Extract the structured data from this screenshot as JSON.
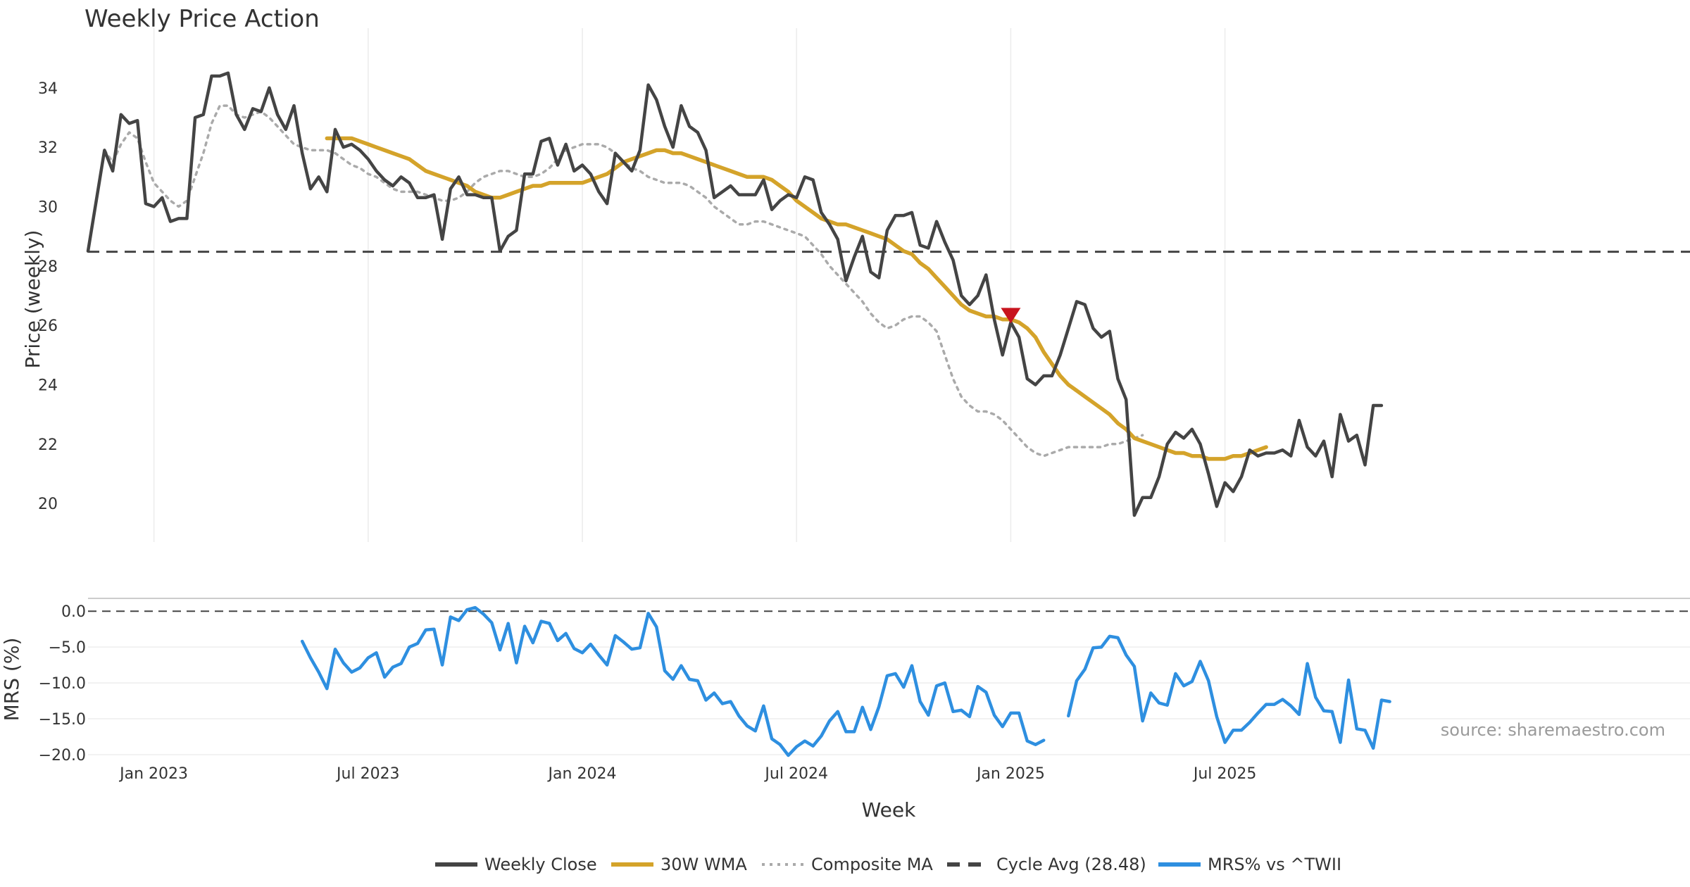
{
  "chart_data": {
    "type": "line",
    "title": "Weekly Price Action",
    "xlabel": "Week",
    "x_tick_labels": [
      "Jan 2023",
      "Jul 2023",
      "Jan 2024",
      "Jul 2024",
      "Jan 2025",
      "Jul 2025"
    ],
    "source": "source: sharemaestro.com",
    "price_panel": {
      "ylabel": "Price (weekly)",
      "ylim": [
        18.7,
        35.3
      ],
      "yticks": [
        "20",
        "22",
        "24",
        "26",
        "28",
        "30",
        "32",
        "34"
      ],
      "cycle_avg": 28.48,
      "signal_marker": {
        "week": 112,
        "value": 26.35,
        "kind": "sell"
      },
      "series": [
        {
          "name": "Weekly Close",
          "color": "#444444",
          "start": 0,
          "values": [
            28.5,
            30.2,
            31.9,
            31.2,
            33.1,
            32.8,
            32.9,
            30.1,
            30.0,
            30.3,
            29.5,
            29.6,
            29.6,
            33.0,
            33.1,
            34.4,
            34.4,
            34.5,
            33.1,
            32.6,
            33.3,
            33.2,
            34.0,
            33.1,
            32.6,
            33.4,
            31.8,
            30.6,
            31.0,
            30.5,
            32.6,
            32.0,
            32.1,
            31.9,
            31.6,
            31.2,
            30.9,
            30.7,
            31.0,
            30.8,
            30.3,
            30.3,
            30.4,
            28.9,
            30.6,
            31.0,
            30.4,
            30.4,
            30.3,
            30.3,
            28.5,
            29.0,
            29.2,
            31.1,
            31.1,
            32.2,
            32.3,
            31.4,
            32.1,
            31.2,
            31.4,
            31.1,
            30.5,
            30.1,
            31.8,
            31.5,
            31.2,
            31.9,
            34.1,
            33.6,
            32.7,
            32.0,
            33.4,
            32.7,
            32.5,
            31.9,
            30.3,
            30.5,
            30.7,
            30.4,
            30.4,
            30.4,
            30.9,
            29.9,
            30.2,
            30.4,
            30.3,
            31.0,
            30.9,
            29.8,
            29.4,
            28.9,
            27.5,
            28.3,
            29.0,
            27.8,
            27.6,
            29.2,
            29.7,
            29.7,
            29.8,
            28.7,
            28.6,
            29.5,
            28.8,
            28.2,
            27.0,
            26.7,
            27.0,
            27.7,
            26.2,
            25.0,
            26.1,
            25.6,
            24.2,
            24.0,
            24.3,
            24.3,
            25.0,
            25.9,
            26.8,
            26.7,
            25.9,
            25.6,
            25.8,
            24.2,
            23.5,
            19.6,
            20.2,
            20.2,
            20.9,
            22.0,
            22.4,
            22.2,
            22.5,
            22.0,
            21.0,
            19.9,
            20.7,
            20.4,
            20.9,
            21.8,
            21.6,
            21.7,
            21.7,
            21.8,
            21.6,
            22.8,
            21.9,
            21.6,
            22.1,
            20.9,
            23.0,
            22.1,
            22.3,
            21.3,
            23.3,
            23.3
          ]
        },
        {
          "name": "30W WMA",
          "color": "#D4A32A",
          "start": 29,
          "values": [
            32.3,
            32.3,
            32.3,
            32.3,
            32.2,
            32.1,
            32.0,
            31.9,
            31.8,
            31.7,
            31.6,
            31.4,
            31.2,
            31.1,
            31.0,
            30.9,
            30.8,
            30.7,
            30.5,
            30.4,
            30.3,
            30.3,
            30.4,
            30.5,
            30.6,
            30.7,
            30.7,
            30.8,
            30.8,
            30.8,
            30.8,
            30.8,
            30.9,
            31.0,
            31.1,
            31.3,
            31.5,
            31.6,
            31.7,
            31.8,
            31.9,
            31.9,
            31.8,
            31.8,
            31.7,
            31.6,
            31.5,
            31.4,
            31.3,
            31.2,
            31.1,
            31.0,
            31.0,
            31.0,
            30.9,
            30.7,
            30.5,
            30.2,
            30.0,
            29.8,
            29.6,
            29.5,
            29.4,
            29.4,
            29.3,
            29.2,
            29.1,
            29.0,
            28.9,
            28.7,
            28.5,
            28.4,
            28.1,
            27.9,
            27.6,
            27.3,
            27.0,
            26.7,
            26.5,
            26.4,
            26.3,
            26.3,
            26.2,
            26.2,
            26.1,
            25.9,
            25.6,
            25.1,
            24.7,
            24.3,
            24.0,
            23.8,
            23.6,
            23.4,
            23.2,
            23.0,
            22.7,
            22.5,
            22.2,
            22.1,
            22.0,
            21.9,
            21.8,
            21.7,
            21.7,
            21.6,
            21.6,
            21.5,
            21.5,
            21.5,
            21.6,
            21.6,
            21.7,
            21.8,
            21.9
          ]
        },
        {
          "name": "Composite MA",
          "color": "#AAAAAA",
          "start": 2,
          "values": [
            31.9,
            31.5,
            32.1,
            32.5,
            32.3,
            31.5,
            30.8,
            30.5,
            30.2,
            30.0,
            30.2,
            31.0,
            31.8,
            32.8,
            33.4,
            33.4,
            33.1,
            33.0,
            33.1,
            33.2,
            33.0,
            32.7,
            32.4,
            32.1,
            32.0,
            31.9,
            31.9,
            31.9,
            31.8,
            31.6,
            31.4,
            31.3,
            31.1,
            31.0,
            30.8,
            30.6,
            30.5,
            30.5,
            30.5,
            30.4,
            30.3,
            30.2,
            30.2,
            30.3,
            30.5,
            30.8,
            31.0,
            31.1,
            31.2,
            31.2,
            31.1,
            31.0,
            31.0,
            31.1,
            31.3,
            31.6,
            31.9,
            32.0,
            32.1,
            32.1,
            32.1,
            32.0,
            31.8,
            31.5,
            31.3,
            31.2,
            31.0,
            30.9,
            30.8,
            30.8,
            30.8,
            30.7,
            30.5,
            30.3,
            30.0,
            29.8,
            29.6,
            29.4,
            29.4,
            29.5,
            29.5,
            29.4,
            29.3,
            29.2,
            29.1,
            29.0,
            28.7,
            28.4,
            28.0,
            27.7,
            27.4,
            27.1,
            26.8,
            26.4,
            26.1,
            25.9,
            26.0,
            26.2,
            26.3,
            26.3,
            26.1,
            25.8,
            25.0,
            24.2,
            23.6,
            23.3,
            23.1,
            23.1,
            23.0,
            22.8,
            22.5,
            22.2,
            21.9,
            21.7,
            21.6,
            21.7,
            21.8,
            21.9,
            21.9,
            21.9,
            21.9,
            21.9,
            22.0,
            22.0,
            22.1,
            22.2,
            22.3
          ]
        }
      ]
    },
    "mrs_panel": {
      "ylabel": "MRS (%)",
      "ylim": [
        -20.3,
        1.3
      ],
      "yticks": [
        "0.0",
        "−5.0",
        "−10.0",
        "−15.0",
        "−20.0"
      ],
      "zero_line": 0,
      "series": [
        {
          "name": "MRS% vs ^TWII",
          "color": "#2E8FE0",
          "start": 26,
          "segments": [
            [
              -4.2,
              -6.5,
              -8.5,
              -10.8,
              -5.3,
              -7.2,
              -8.5,
              -7.9,
              -6.5,
              -5.8,
              -9.2,
              -7.8,
              -7.3,
              -5.0,
              -4.5,
              -2.6,
              -2.5,
              -7.5,
              -0.8,
              -1.3,
              0.2,
              0.5,
              -0.4,
              -1.6,
              -5.4,
              -1.7,
              -7.2,
              -2.1,
              -4.4,
              -1.4,
              -1.7,
              -4.1,
              -3.1,
              -5.2,
              -5.8,
              -4.6,
              -6.1,
              -7.5,
              -3.4,
              -4.3,
              -5.3,
              -5.1,
              -0.3,
              -2.2,
              -8.3,
              -9.5,
              -7.6,
              -9.5,
              -9.7,
              -12.4,
              -11.4,
              -12.9,
              -12.6,
              -14.6,
              -16.0,
              -16.7,
              -13.2,
              -17.8,
              -18.6,
              -20.1,
              -18.9,
              -18.1,
              -18.8,
              -17.4,
              -15.3,
              -14.0,
              -16.8,
              -16.8,
              -13.4,
              -16.5,
              -13.3,
              -9.0,
              -8.7,
              -10.6,
              -7.6,
              -12.6,
              -14.5,
              -10.4,
              -10.0,
              -14.0,
              -13.8,
              -14.7,
              -10.5,
              -11.3,
              -14.5,
              -16.1,
              -14.2,
              -14.2,
              -18.1,
              -18.6,
              -18.0
            ],
            [
              -14.6,
              -9.7,
              -8.1,
              -5.1,
              -5.0,
              -3.5,
              -3.7,
              -6.1,
              -7.7,
              -15.3,
              -11.4,
              -12.8,
              -13.1,
              -8.7,
              -10.4,
              -9.8,
              -7.0,
              -9.7,
              -14.7,
              -18.3,
              -16.6,
              -16.6,
              -15.5,
              -14.2,
              -13.0,
              -13.0,
              -12.3,
              -13.2,
              -14.4,
              -7.3,
              -12.0,
              -13.9,
              -14.0,
              -18.3,
              -9.6,
              -16.4,
              -16.6,
              -19.1,
              -12.4,
              -12.6
            ]
          ]
        }
      ]
    },
    "legend": [
      {
        "label": "Weekly Close",
        "style": "solid",
        "color": "#444444"
      },
      {
        "label": "30W WMA",
        "style": "solid",
        "color": "#D4A32A"
      },
      {
        "label": "Composite MA",
        "style": "dotted",
        "color": "#AAAAAA"
      },
      {
        "label": "Cycle Avg (28.48)",
        "style": "dashed",
        "color": "#444444"
      },
      {
        "label": "MRS% vs ^TWII",
        "style": "solid",
        "color": "#2E8FE0"
      }
    ]
  }
}
